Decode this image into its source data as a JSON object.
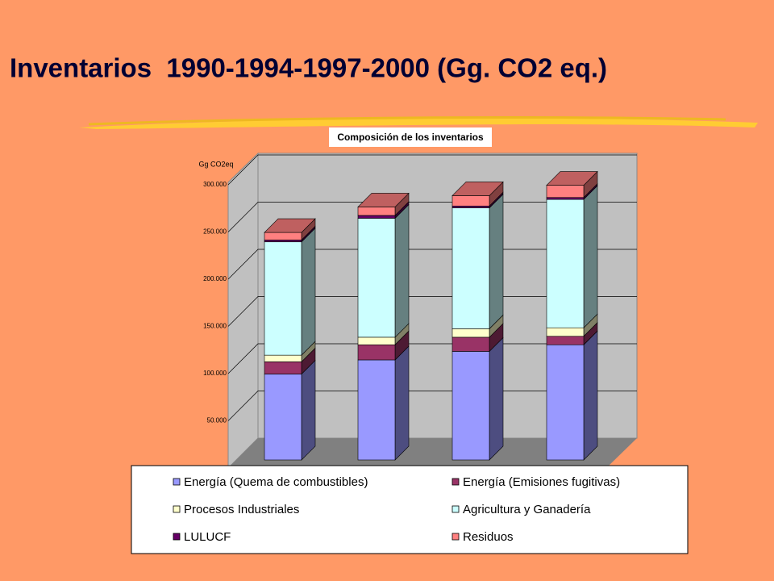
{
  "chart_data": {
    "type": "bar3d-stacked",
    "title": "Inventarios  1990-1994-1997-2000 (Gg. CO2 eq.)",
    "subtitle": "Composición de los inventarios",
    "y_label": "Gg CO2eq",
    "categories": [
      null,
      null,
      null,
      null
    ],
    "ylim": [
      0,
      300000
    ],
    "yticks": [
      {
        "value": 50000,
        "label": "50.000"
      },
      {
        "value": 100000,
        "label": "100.000"
      },
      {
        "value": 150000,
        "label": "150.000"
      },
      {
        "value": 200000,
        "label": "200.000"
      },
      {
        "value": 250000,
        "label": "250.000"
      },
      {
        "value": 300000,
        "label": "300.000"
      }
    ],
    "grid": true,
    "series": [
      {
        "name": "Energía (Quema de combustibles)",
        "color": "#9999ff",
        "values": [
          91000,
          106000,
          115000,
          122000
        ]
      },
      {
        "name": "Energía (Emisiones fugitivas)",
        "color": "#993366",
        "values": [
          13000,
          16000,
          15000,
          9000
        ]
      },
      {
        "name": "Procesos Industriales",
        "color": "#ffffcc",
        "values": [
          7000,
          8000,
          9000,
          9000
        ]
      },
      {
        "name": "Agricultura y Ganadería",
        "color": "#ccffff",
        "values": [
          120000,
          126000,
          128000,
          136000
        ]
      },
      {
        "name": "LULUCF",
        "color": "#660066",
        "values": [
          2000,
          3000,
          2000,
          2000
        ]
      },
      {
        "name": "Residuos",
        "color": "#ff8080",
        "values": [
          8000,
          9000,
          11000,
          13000
        ]
      }
    ]
  }
}
